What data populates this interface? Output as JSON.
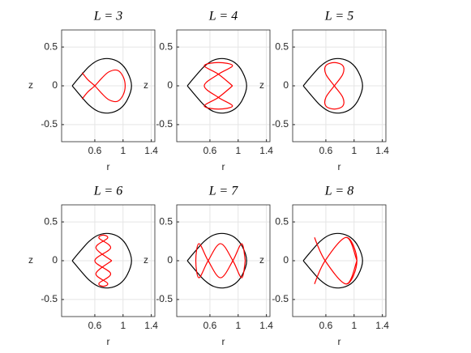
{
  "chart_data": [
    {
      "type": "line",
      "title": "L = 3",
      "xlabel": "r",
      "ylabel": "z",
      "xlim": [
        0.13,
        1.45
      ],
      "ylim": [
        -0.72,
        0.72
      ],
      "xticks": [
        0.6,
        1,
        1.4
      ],
      "yticks": [
        -0.5,
        0,
        0.5
      ],
      "grid": true,
      "series": [
        {
          "color": "#000000",
          "x": [
            0.28,
            0.4,
            0.52,
            0.65,
            0.8,
            0.95,
            1.06,
            1.12,
            1.06,
            0.95,
            0.8,
            0.65,
            0.52,
            0.4,
            0.28
          ],
          "values": [
            0,
            0.13,
            0.25,
            0.33,
            0.35,
            0.3,
            0.18,
            0,
            -0.18,
            -0.3,
            -0.35,
            -0.33,
            -0.25,
            -0.13,
            0
          ]
        },
        {
          "color": "#ff0000",
          "x": [
            0.42,
            0.5,
            0.6,
            0.7,
            0.8,
            0.92,
            1.0,
            1.03,
            1.0,
            0.92,
            0.8,
            0.7,
            0.6,
            0.5,
            0.42
          ],
          "values": [
            0.17,
            0.08,
            0,
            -0.1,
            -0.18,
            -0.2,
            -0.12,
            0,
            0.12,
            0.2,
            0.18,
            0.1,
            0,
            -0.08,
            -0.17
          ]
        }
      ]
    },
    {
      "type": "line",
      "title": "L = 4",
      "xlabel": "r",
      "ylabel": "z",
      "xlim": [
        0.13,
        1.45
      ],
      "ylim": [
        -0.72,
        0.72
      ],
      "xticks": [
        0.6,
        1,
        1.4
      ],
      "yticks": [
        -0.5,
        0,
        0.5
      ],
      "grid": true,
      "series": [
        {
          "color": "#000000",
          "x": [
            0.28,
            0.4,
            0.52,
            0.65,
            0.8,
            0.95,
            1.06,
            1.12,
            1.06,
            0.95,
            0.8,
            0.65,
            0.52,
            0.4,
            0.28
          ],
          "values": [
            0,
            0.13,
            0.25,
            0.33,
            0.35,
            0.3,
            0.18,
            0,
            -0.18,
            -0.3,
            -0.35,
            -0.33,
            -0.25,
            -0.13,
            0
          ]
        },
        {
          "color": "#ff0000",
          "x": [
            0.92,
            0.72,
            0.52,
            0.72,
            0.92,
            0.72,
            0.52,
            0.72,
            0.92,
            0.72,
            0.52,
            0.72,
            0.92
          ],
          "values": [
            0,
            0.15,
            0.26,
            0.3,
            0.26,
            0.15,
            0,
            -0.15,
            -0.26,
            -0.3,
            -0.26,
            -0.15,
            0
          ]
        }
      ]
    },
    {
      "type": "line",
      "title": "L = 5",
      "xlabel": "r",
      "ylabel": "z",
      "xlim": [
        0.13,
        1.45
      ],
      "ylim": [
        -0.72,
        0.72
      ],
      "xticks": [
        0.6,
        1,
        1.4
      ],
      "yticks": [
        -0.5,
        0,
        0.5
      ],
      "grid": true,
      "series": [
        {
          "color": "#000000",
          "x": [
            0.28,
            0.4,
            0.52,
            0.65,
            0.8,
            0.95,
            1.06,
            1.12,
            1.06,
            0.95,
            0.8,
            0.65,
            0.52,
            0.4,
            0.28
          ],
          "values": [
            0,
            0.13,
            0.25,
            0.33,
            0.35,
            0.3,
            0.18,
            0,
            -0.18,
            -0.3,
            -0.35,
            -0.33,
            -0.25,
            -0.13,
            0
          ]
        },
        {
          "color": "#ff0000",
          "x": [
            0.72,
            0.84,
            0.84,
            0.72,
            0.6,
            0.6,
            0.72,
            0.84,
            0.84,
            0.72,
            0.6,
            0.6,
            0.72
          ],
          "values": [
            0,
            0.15,
            0.26,
            0.3,
            0.26,
            0.15,
            0,
            -0.15,
            -0.26,
            -0.3,
            -0.26,
            -0.15,
            0
          ]
        }
      ]
    },
    {
      "type": "line",
      "title": "L = 6",
      "xlabel": "r",
      "ylabel": "z",
      "xlim": [
        0.13,
        1.45
      ],
      "ylim": [
        -0.72,
        0.72
      ],
      "xticks": [
        0.6,
        1,
        1.4
      ],
      "yticks": [
        -0.5,
        0,
        0.5
      ],
      "grid": true,
      "series": [
        {
          "color": "#000000",
          "x": [
            0.28,
            0.4,
            0.52,
            0.65,
            0.8,
            0.95,
            1.06,
            1.12,
            1.06,
            0.95,
            0.8,
            0.65,
            0.52,
            0.4,
            0.28
          ],
          "values": [
            0,
            0.13,
            0.25,
            0.33,
            0.35,
            0.3,
            0.18,
            0,
            -0.18,
            -0.3,
            -0.35,
            -0.33,
            -0.25,
            -0.13,
            0
          ]
        },
        {
          "color": "#ff0000",
          "x": [
            0.84,
            0.616,
            0.78,
            0.72,
            0.66,
            0.824,
            0.6,
            0.824,
            0.66,
            0.72,
            0.78,
            0.616,
            0.84
          ],
          "values": [
            0,
            0.165,
            0.29,
            0.33,
            0.29,
            0.165,
            0,
            -0.165,
            -0.29,
            -0.33,
            -0.29,
            -0.165,
            0
          ]
        }
      ]
    },
    {
      "type": "line",
      "title": "L = 7",
      "xlabel": "r",
      "ylabel": "z",
      "xlim": [
        0.13,
        1.45
      ],
      "ylim": [
        -0.72,
        0.72
      ],
      "xticks": [
        0.6,
        1,
        1.4
      ],
      "yticks": [
        -0.5,
        0,
        0.5
      ],
      "grid": true,
      "series": [
        {
          "color": "#000000",
          "x": [
            0.28,
            0.4,
            0.52,
            0.65,
            0.8,
            0.95,
            1.06,
            1.12,
            1.06,
            0.95,
            0.8,
            0.65,
            0.52,
            0.4,
            0.28
          ],
          "values": [
            0,
            0.13,
            0.25,
            0.33,
            0.35,
            0.3,
            0.18,
            0,
            -0.18,
            -0.3,
            -0.35,
            -0.33,
            -0.25,
            -0.13,
            0
          ]
        },
        {
          "color": "#ff0000",
          "x": [
            1.1,
            1.05,
            0.925,
            0.75,
            0.575,
            0.445,
            0.4,
            0.445,
            0.575,
            0.75,
            0.925,
            1.05,
            1.1
          ],
          "values": [
            0,
            0.22,
            0,
            -0.22,
            0,
            0.22,
            0,
            -0.22,
            0,
            0.22,
            0,
            -0.22,
            0
          ]
        }
      ]
    },
    {
      "type": "line",
      "title": "L = 8",
      "xlabel": "r",
      "ylabel": "z",
      "xlim": [
        0.13,
        1.45
      ],
      "ylim": [
        -0.72,
        0.72
      ],
      "xticks": [
        0.6,
        1,
        1.4
      ],
      "yticks": [
        -0.5,
        0,
        0.5
      ],
      "grid": true,
      "series": [
        {
          "color": "#000000",
          "x": [
            0.28,
            0.4,
            0.52,
            0.65,
            0.8,
            0.95,
            1.06,
            1.12,
            1.06,
            0.95,
            0.8,
            0.65,
            0.52,
            0.4,
            0.28
          ],
          "values": [
            0,
            0.13,
            0.25,
            0.33,
            0.35,
            0.3,
            0.18,
            0,
            -0.18,
            -0.3,
            -0.35,
            -0.33,
            -0.25,
            -0.13,
            0
          ]
        },
        {
          "color": "#ff0000",
          "x": [
            1.04,
            0.89,
            0.59,
            0.44,
            0.59,
            0.89,
            1.04,
            0.89,
            0.59,
            0.44,
            0.59,
            0.89,
            1.04
          ],
          "values": [
            0,
            0.3,
            0,
            -0.3,
            0,
            0.3,
            0,
            -0.3,
            0,
            0.3,
            0,
            -0.3,
            0
          ]
        }
      ]
    }
  ]
}
